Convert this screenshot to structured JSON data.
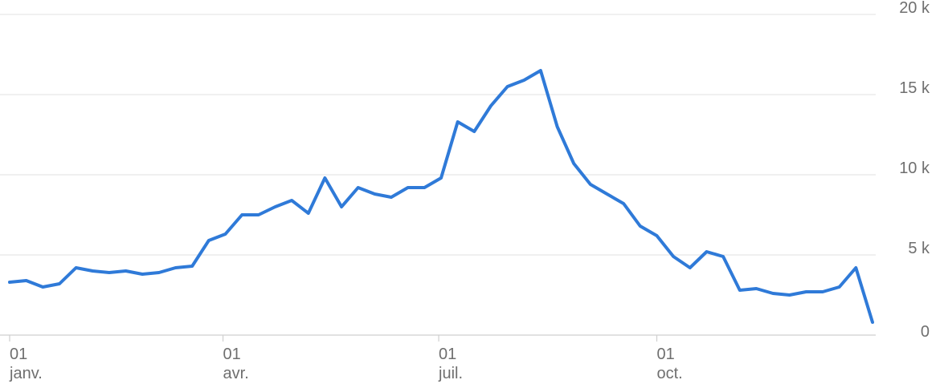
{
  "chart_data": {
    "type": "line",
    "title": "",
    "xlabel": "",
    "ylabel": "",
    "ylim": [
      0,
      20000
    ],
    "grid": true,
    "legend": "none",
    "color": "#2f7ad8",
    "y_ticks": [
      {
        "value": 0,
        "label": "0"
      },
      {
        "value": 5000,
        "label": "5 k"
      },
      {
        "value": 10000,
        "label": "10 k"
      },
      {
        "value": 15000,
        "label": "15 k"
      },
      {
        "value": 20000,
        "label": "20 k"
      }
    ],
    "x_ticks": [
      {
        "date": "2023-01-01",
        "day": "01",
        "month": "janv."
      },
      {
        "date": "2023-04-01",
        "day": "01",
        "month": "avr."
      },
      {
        "date": "2023-07-01",
        "day": "01",
        "month": "juil."
      },
      {
        "date": "2023-10-01",
        "day": "01",
        "month": "oct."
      }
    ],
    "xlim": [
      "2023-01-01",
      "2023-12-31"
    ],
    "series": [
      {
        "x": [
          "2023-01-01",
          "2023-01-08",
          "2023-01-15",
          "2023-01-22",
          "2023-01-29",
          "2023-02-05",
          "2023-02-12",
          "2023-02-19",
          "2023-02-26",
          "2023-03-05",
          "2023-03-12",
          "2023-03-19",
          "2023-03-26",
          "2023-04-02",
          "2023-04-09",
          "2023-04-16",
          "2023-04-23",
          "2023-04-30",
          "2023-05-07",
          "2023-05-14",
          "2023-05-21",
          "2023-05-28",
          "2023-06-04",
          "2023-06-11",
          "2023-06-18",
          "2023-06-25",
          "2023-07-02",
          "2023-07-09",
          "2023-07-16",
          "2023-07-23",
          "2023-07-30",
          "2023-08-06",
          "2023-08-13",
          "2023-08-20",
          "2023-08-27",
          "2023-09-03",
          "2023-09-10",
          "2023-09-17",
          "2023-09-24",
          "2023-10-01",
          "2023-10-08",
          "2023-10-15",
          "2023-10-22",
          "2023-10-29",
          "2023-11-05",
          "2023-11-12",
          "2023-11-19",
          "2023-11-26",
          "2023-12-03",
          "2023-12-10",
          "2023-12-17",
          "2023-12-24",
          "2023-12-31"
        ],
        "y": [
          3300,
          3400,
          3000,
          3200,
          4200,
          4000,
          3900,
          4000,
          3800,
          3900,
          4200,
          4300,
          5900,
          6300,
          7500,
          7500,
          8000,
          8400,
          7600,
          9800,
          8000,
          9200,
          8800,
          8600,
          9200,
          9200,
          9800,
          13300,
          12700,
          14300,
          15500,
          15900,
          16500,
          13000,
          10700,
          9400,
          8800,
          8200,
          6800,
          6200,
          4900,
          4200,
          5200,
          4900,
          2800,
          2900,
          2600,
          2500,
          2700,
          2700,
          3000,
          4200,
          800
        ]
      }
    ]
  }
}
